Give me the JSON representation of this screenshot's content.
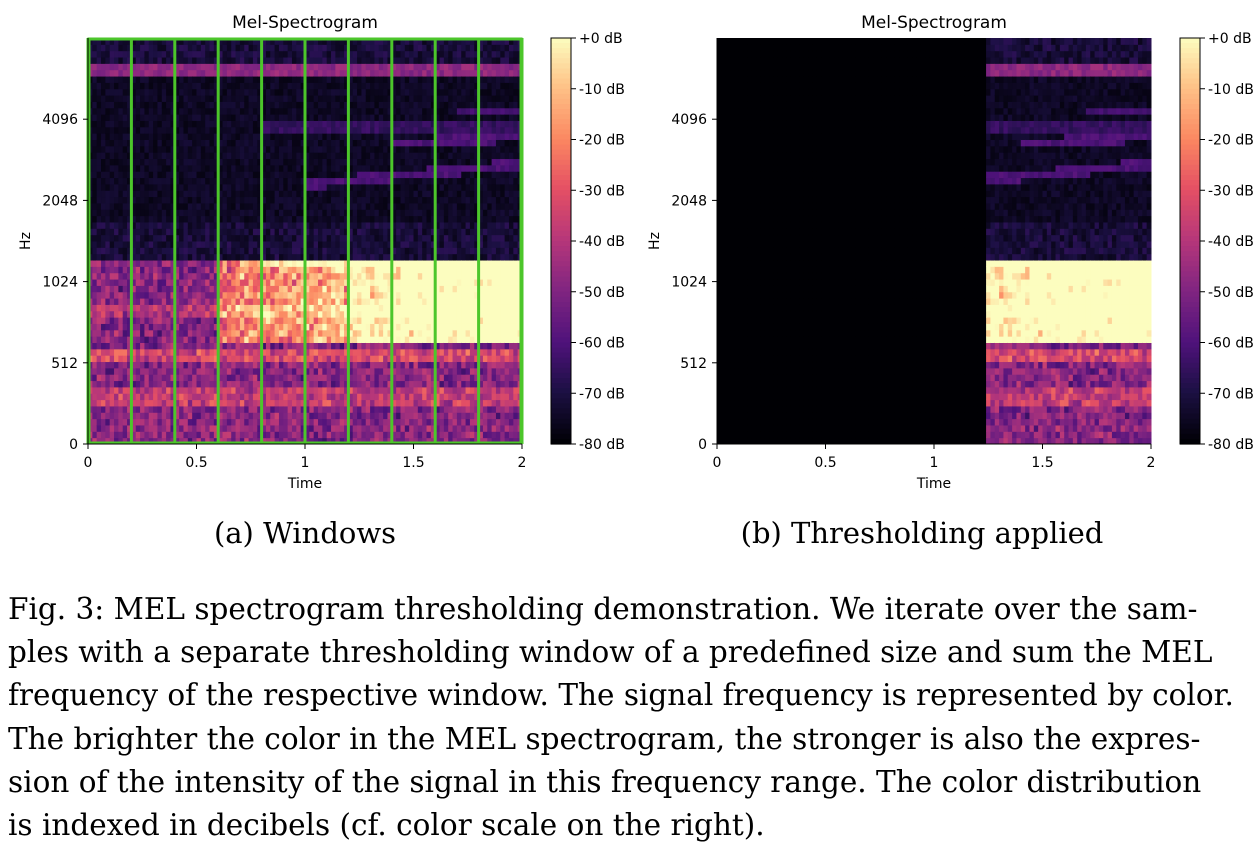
{
  "panels": [
    {
      "title": "Mel-Spectrogram",
      "subcaption": "(a) Windows",
      "show_windows": true,
      "threshold_start": null
    },
    {
      "title": "Mel-Spectrogram",
      "subcaption": "(b) Thresholding applied",
      "show_windows": false,
      "threshold_start": 1.25
    }
  ],
  "chart_data": [
    {
      "type": "heatmap",
      "title": "Mel-Spectrogram",
      "xlabel": "Time",
      "ylabel": "Hz",
      "xlim": [
        0,
        2
      ],
      "x_ticks": [
        "0",
        "0.5",
        "1",
        "1.5",
        "2"
      ],
      "y_ticks": [
        "0",
        "512",
        "1024",
        "2048",
        "4096"
      ],
      "colorbar": {
        "ticks": [
          "+0 dB",
          "-10 dB",
          "-20 dB",
          "-30 dB",
          "-40 dB",
          "-50 dB",
          "-60 dB",
          "-70 dB",
          "-80 dB"
        ]
      },
      "window_boundaries": [
        0,
        0.2,
        0.4,
        0.6,
        0.8,
        1.0,
        1.2,
        1.4,
        1.6,
        1.8,
        2.0
      ],
      "window_color": "#4cc62b"
    },
    {
      "type": "heatmap",
      "title": "Mel-Spectrogram",
      "xlabel": "Time",
      "ylabel": "Hz",
      "xlim": [
        0,
        2
      ],
      "x_ticks": [
        "0",
        "0.5",
        "1",
        "1.5",
        "2"
      ],
      "y_ticks": [
        "0",
        "512",
        "1024",
        "2048",
        "4096"
      ],
      "colorbar": {
        "ticks": [
          "+0 dB",
          "-10 dB",
          "-20 dB",
          "-30 dB",
          "-40 dB",
          "-50 dB",
          "-60 dB",
          "-70 dB",
          "-80 dB"
        ]
      },
      "masked_before_time": 1.25
    }
  ],
  "caption_lines": [
    "Fig. 3: MEL spectrogram thresholding demonstration. We iterate over the sam-",
    "ples with a separate thresholding window of a predefined size and sum the MEL",
    "frequency of the respective window. The signal frequency is represented by color.",
    "The brighter the color in the MEL spectrogram, the stronger is also the expres-",
    "sion of the intensity of the signal in this frequency range. The color distribution",
    "is indexed in decibels (cf. color scale on the right)."
  ]
}
